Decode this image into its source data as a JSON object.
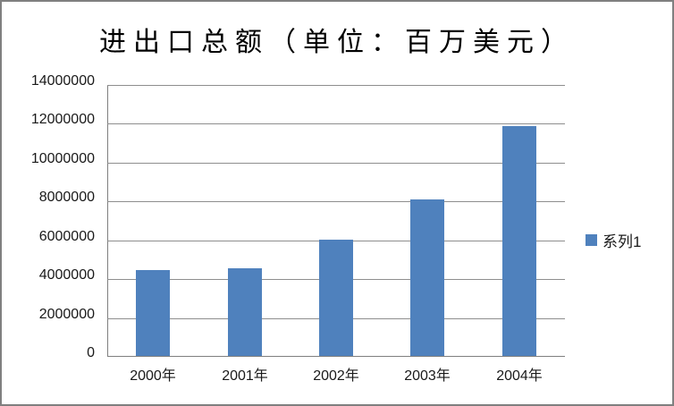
{
  "chart_data": {
    "type": "bar",
    "title": "进出口总额（单位：百万美元）",
    "categories": [
      "2000年",
      "2001年",
      "2002年",
      "2003年",
      "2004年"
    ],
    "series": [
      {
        "name": "系列1",
        "values": [
          4400000,
          4500000,
          6000000,
          8050000,
          11820000
        ]
      }
    ],
    "xlabel": "",
    "ylabel": "",
    "ylim": [
      0,
      14000000
    ],
    "ytick_step": 2000000,
    "yticks": [
      0,
      2000000,
      4000000,
      6000000,
      8000000,
      10000000,
      12000000,
      14000000
    ],
    "grid": true,
    "legend_position": "right"
  },
  "legend": {
    "label": "系列1"
  },
  "colors": {
    "bar": "#4F81BD",
    "gridline": "#8e8e8e",
    "axis": "#7f7f7f",
    "window_border": "#808080",
    "text": "#1a1a1a",
    "title_text": "#000000"
  }
}
